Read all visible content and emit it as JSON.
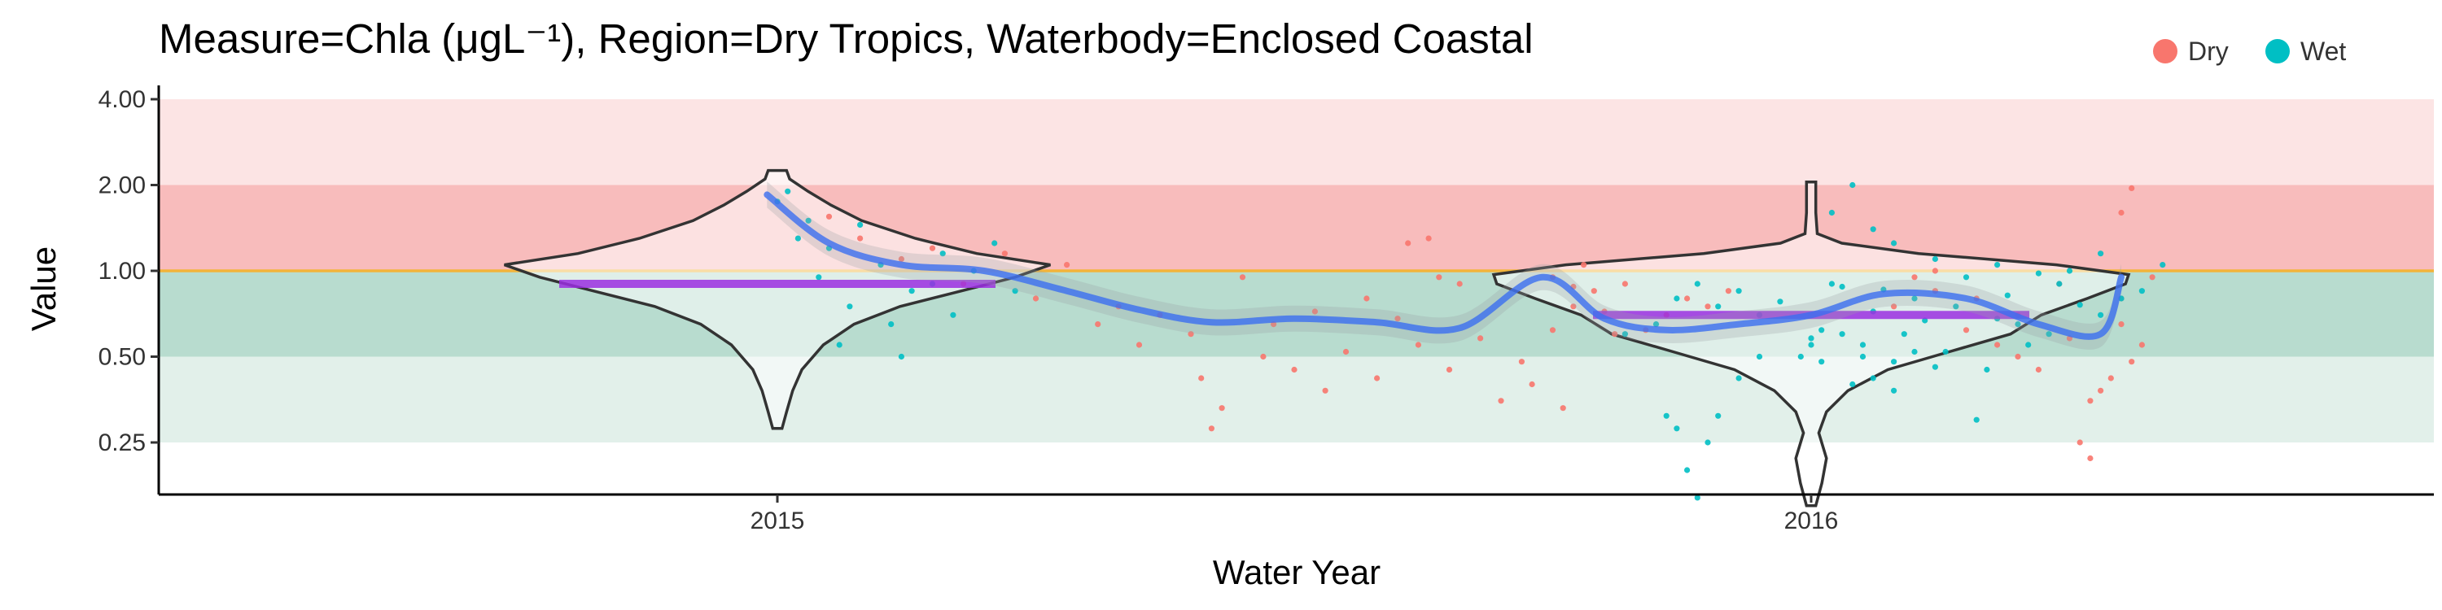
{
  "chart_data": {
    "type": "violin",
    "title": "Measure=Chla (μgL⁻¹), Region=Dry Tropics, Waterbody=Enclosed Coastal",
    "xlabel": "Water Year",
    "ylabel": "Value",
    "categories": [
      "2015",
      "2016"
    ],
    "y_scale": "log",
    "y_ticks": [
      0.25,
      0.5,
      1.0,
      2.0,
      4.0
    ],
    "y_tick_labels": [
      "0.25",
      "0.50",
      "1.00",
      "2.00",
      "4.00"
    ],
    "ylim": [
      0.18,
      5.0
    ],
    "guideline": 1.0,
    "bands": [
      {
        "from": 2.0,
        "to": 4.0,
        "color": "#fce4e4"
      },
      {
        "from": 1.0,
        "to": 2.0,
        "color": "#f8bcbc"
      },
      {
        "from": 0.5,
        "to": 1.0,
        "color": "#b8dccf"
      },
      {
        "from": 0.25,
        "to": 0.5,
        "color": "#e2f0ea"
      }
    ],
    "legend": {
      "position": "top-right",
      "entries": [
        {
          "name": "Dry",
          "color": "#F8766D"
        },
        {
          "name": "Wet",
          "color": "#00BFC4"
        }
      ]
    },
    "violins": [
      {
        "category": "2015",
        "min": 0.28,
        "max": 2.25,
        "profile": [
          [
            0.28,
            0.03
          ],
          [
            0.32,
            0.06
          ],
          [
            0.38,
            0.1
          ],
          [
            0.45,
            0.16
          ],
          [
            0.55,
            0.3
          ],
          [
            0.65,
            0.5
          ],
          [
            0.75,
            0.8
          ],
          [
            0.85,
            1.2
          ],
          [
            0.95,
            1.55
          ],
          [
            1.05,
            1.78
          ],
          [
            1.15,
            1.3
          ],
          [
            1.3,
            0.9
          ],
          [
            1.5,
            0.55
          ],
          [
            1.7,
            0.35
          ],
          [
            1.9,
            0.2
          ],
          [
            2.1,
            0.08
          ],
          [
            2.25,
            0.06
          ]
        ]
      },
      {
        "category": "2016",
        "min": 0.15,
        "max": 2.05,
        "profile": [
          [
            0.15,
            0.03
          ],
          [
            0.18,
            0.07
          ],
          [
            0.22,
            0.1
          ],
          [
            0.27,
            0.05
          ],
          [
            0.32,
            0.1
          ],
          [
            0.38,
            0.24
          ],
          [
            0.45,
            0.5
          ],
          [
            0.52,
            0.9
          ],
          [
            0.6,
            1.3
          ],
          [
            0.7,
            1.5
          ],
          [
            0.8,
            1.8
          ],
          [
            0.9,
            2.05
          ],
          [
            0.97,
            2.07
          ],
          [
            1.05,
            1.6
          ],
          [
            1.15,
            0.7
          ],
          [
            1.25,
            0.2
          ],
          [
            1.35,
            0.04
          ],
          [
            1.6,
            0.03
          ],
          [
            2.05,
            0.03
          ]
        ]
      }
    ],
    "means": [
      {
        "category": "2015",
        "value": 0.9
      },
      {
        "category": "2016",
        "value": 0.7
      }
    ],
    "trend": {
      "x": [
        2014.99,
        2015.05,
        2015.12,
        2015.2,
        2015.28,
        2015.35,
        2015.42,
        2015.5,
        2015.58,
        2015.66,
        2015.74,
        2015.8,
        2015.86,
        2015.93,
        2016.0,
        2016.07,
        2016.15,
        2016.22,
        2016.28,
        2016.3
      ],
      "y": [
        1.85,
        1.25,
        1.05,
        1.0,
        0.85,
        0.73,
        0.66,
        0.68,
        0.66,
        0.63,
        0.95,
        0.68,
        0.62,
        0.65,
        0.7,
        0.83,
        0.8,
        0.65,
        0.6,
        0.95
      ]
    },
    "points": {
      "Dry": [
        [
          2015.05,
          1.55
        ],
        [
          2015.08,
          1.3
        ],
        [
          2015.12,
          1.1
        ],
        [
          2015.15,
          1.2
        ],
        [
          2015.18,
          0.9
        ],
        [
          2015.22,
          1.15
        ],
        [
          2015.25,
          0.8
        ],
        [
          2015.28,
          1.05
        ],
        [
          2015.31,
          0.65
        ],
        [
          2015.33,
          0.75
        ],
        [
          2015.35,
          0.55
        ],
        [
          2015.37,
          0.7
        ],
        [
          2015.4,
          0.6
        ],
        [
          2015.41,
          0.42
        ],
        [
          2015.42,
          0.28
        ],
        [
          2015.43,
          0.33
        ],
        [
          2015.45,
          0.95
        ],
        [
          2015.47,
          0.5
        ],
        [
          2015.48,
          0.65
        ],
        [
          2015.5,
          0.45
        ],
        [
          2015.52,
          0.72
        ],
        [
          2015.53,
          0.38
        ],
        [
          2015.55,
          0.52
        ],
        [
          2015.57,
          0.8
        ],
        [
          2015.58,
          0.42
        ],
        [
          2015.6,
          0.68
        ],
        [
          2015.62,
          0.55
        ],
        [
          2015.63,
          1.3
        ],
        [
          2015.65,
          0.45
        ],
        [
          2015.66,
          0.9
        ],
        [
          2015.68,
          0.58
        ],
        [
          2015.7,
          0.35
        ],
        [
          2015.72,
          0.48
        ],
        [
          2015.73,
          0.4
        ],
        [
          2015.75,
          0.62
        ],
        [
          2015.76,
          0.33
        ],
        [
          2015.77,
          0.75
        ],
        [
          2015.78,
          1.05
        ],
        [
          2015.61,
          1.25
        ],
        [
          2015.64,
          0.95
        ],
        [
          2015.75,
          0.95
        ],
        [
          2015.77,
          0.88
        ],
        [
          2015.79,
          0.85
        ],
        [
          2015.8,
          0.72
        ],
        [
          2015.81,
          0.6
        ],
        [
          2015.82,
          0.9
        ],
        [
          2015.84,
          0.62
        ],
        [
          2015.86,
          0.7
        ],
        [
          2015.88,
          0.8
        ],
        [
          2015.9,
          0.75
        ],
        [
          2015.92,
          0.85
        ],
        [
          2015.95,
          0.7
        ],
        [
          2016.08,
          0.75
        ],
        [
          2016.12,
          0.85
        ],
        [
          2016.15,
          0.62
        ],
        [
          2016.18,
          0.55
        ],
        [
          2016.2,
          0.5
        ],
        [
          2016.22,
          0.45
        ],
        [
          2016.25,
          0.58
        ],
        [
          2016.27,
          0.35
        ],
        [
          2016.28,
          0.38
        ],
        [
          2016.26,
          0.25
        ],
        [
          2016.27,
          0.22
        ],
        [
          2016.29,
          0.42
        ],
        [
          2016.3,
          0.65
        ],
        [
          2016.31,
          1.95
        ],
        [
          2016.3,
          1.6
        ],
        [
          2016.32,
          0.55
        ],
        [
          2016.33,
          0.95
        ],
        [
          2016.3,
          0.8
        ],
        [
          2016.31,
          0.48
        ],
        [
          2016.24,
          0.9
        ],
        [
          2016.2,
          0.7
        ],
        [
          2016.16,
          0.8
        ],
        [
          2016.1,
          0.95
        ],
        [
          2016.12,
          1.0
        ]
      ],
      "Wet": [
        [
          2015.0,
          1.75
        ],
        [
          2015.01,
          1.9
        ],
        [
          2015.02,
          1.3
        ],
        [
          2015.03,
          1.5
        ],
        [
          2015.04,
          0.95
        ],
        [
          2015.05,
          1.2
        ],
        [
          2015.06,
          0.55
        ],
        [
          2015.07,
          0.75
        ],
        [
          2015.08,
          1.45
        ],
        [
          2015.1,
          1.05
        ],
        [
          2015.11,
          0.65
        ],
        [
          2015.12,
          0.5
        ],
        [
          2015.13,
          0.85
        ],
        [
          2015.15,
          0.9
        ],
        [
          2015.16,
          1.15
        ],
        [
          2015.17,
          0.7
        ],
        [
          2015.19,
          1.0
        ],
        [
          2015.21,
          1.25
        ],
        [
          2015.23,
          0.85
        ],
        [
          2015.82,
          0.6
        ],
        [
          2015.85,
          0.65
        ],
        [
          2015.87,
          0.8
        ],
        [
          2015.89,
          0.9
        ],
        [
          2015.91,
          0.75
        ],
        [
          2015.93,
          0.85
        ],
        [
          2015.95,
          0.7
        ],
        [
          2015.97,
          0.78
        ],
        [
          2015.99,
          0.5
        ],
        [
          2016.0,
          0.58
        ],
        [
          2016.01,
          0.62
        ],
        [
          2016.02,
          0.9
        ],
        [
          2016.03,
          0.88
        ],
        [
          2016.04,
          0.4
        ],
        [
          2016.05,
          0.55
        ],
        [
          2016.06,
          0.72
        ],
        [
          2016.07,
          0.86
        ],
        [
          2016.08,
          0.48
        ],
        [
          2016.09,
          0.6
        ],
        [
          2016.1,
          0.8
        ],
        [
          2016.11,
          0.67
        ],
        [
          2016.13,
          0.52
        ],
        [
          2016.14,
          0.75
        ],
        [
          2016.16,
          0.3
        ],
        [
          2016.17,
          0.45
        ],
        [
          2016.18,
          0.68
        ],
        [
          2016.19,
          0.82
        ],
        [
          2016.21,
          0.55
        ],
        [
          2016.23,
          0.6
        ],
        [
          2016.24,
          0.9
        ],
        [
          2016.26,
          0.76
        ],
        [
          2016.28,
          0.7
        ],
        [
          2016.3,
          0.8
        ],
        [
          2016.34,
          1.05
        ],
        [
          2015.86,
          0.31
        ],
        [
          2015.87,
          0.28
        ],
        [
          2015.88,
          0.2
        ],
        [
          2015.89,
          0.16
        ],
        [
          2015.9,
          0.25
        ],
        [
          2015.91,
          0.31
        ],
        [
          2015.93,
          0.42
        ],
        [
          2015.95,
          0.5
        ],
        [
          2016.0,
          0.55
        ],
        [
          2016.01,
          0.48
        ],
        [
          2016.03,
          0.6
        ],
        [
          2016.05,
          0.5
        ],
        [
          2016.06,
          0.42
        ],
        [
          2016.08,
          0.38
        ],
        [
          2016.1,
          0.52
        ],
        [
          2016.12,
          0.46
        ],
        [
          2016.02,
          1.6
        ],
        [
          2016.04,
          2.0
        ],
        [
          2016.06,
          1.4
        ],
        [
          2016.08,
          1.25
        ],
        [
          2016.12,
          1.1
        ],
        [
          2016.15,
          0.95
        ],
        [
          2016.18,
          1.05
        ],
        [
          2016.2,
          0.65
        ],
        [
          2016.22,
          0.98
        ],
        [
          2016.25,
          1.0
        ],
        [
          2016.28,
          1.15
        ],
        [
          2016.32,
          0.85
        ]
      ]
    }
  }
}
